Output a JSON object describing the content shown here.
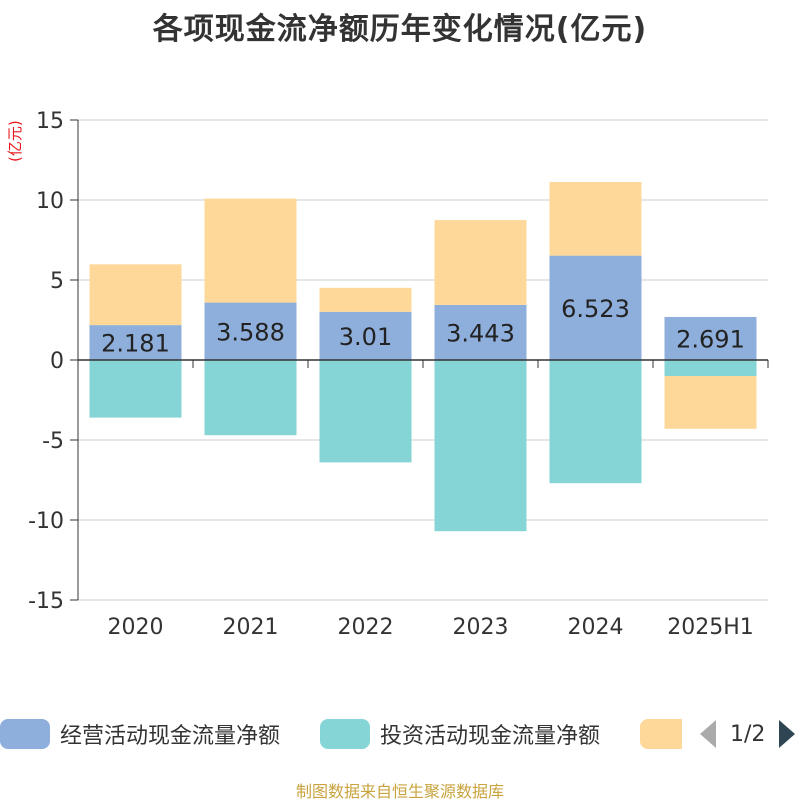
{
  "title": "各项现金流净额历年变化情况(亿元)",
  "unit_label": "(亿元)",
  "source": "制图数据来自恒生聚源数据库",
  "legend": {
    "items": [
      {
        "label": "经营活动现金流量净额",
        "color": "#8eaedb"
      },
      {
        "label": "投资活动现金流量净额",
        "color": "#86d5d6"
      },
      {
        "label": "",
        "color": "#fdd899"
      }
    ],
    "page": "1/2"
  },
  "chart_data": {
    "type": "bar",
    "stacked": true,
    "categories": [
      "2020",
      "2021",
      "2022",
      "2023",
      "2024",
      "2025H1"
    ],
    "series": [
      {
        "name": "经营活动现金流量净额",
        "color": "#8eaedb",
        "values": [
          2.181,
          3.588,
          3.01,
          3.443,
          6.523,
          2.691
        ],
        "labels_shown": true
      },
      {
        "name": "投资活动现金流量净额",
        "color": "#86d5d6",
        "values": [
          -3.6,
          -4.7,
          -6.4,
          -10.7,
          -7.7,
          -1.0
        ]
      },
      {
        "name": "",
        "color": "#fdd899",
        "values": [
          3.8,
          6.5,
          1.5,
          5.3,
          4.6,
          -3.3
        ]
      }
    ],
    "ylim": [
      -15,
      15
    ],
    "yticks": [
      -15,
      -10,
      -5,
      0,
      5,
      10,
      15
    ],
    "ytick_labels": [
      "-15",
      "-10",
      "-5",
      "0",
      "5",
      "10",
      "15"
    ],
    "grid": true,
    "legend_position": "bottom"
  }
}
